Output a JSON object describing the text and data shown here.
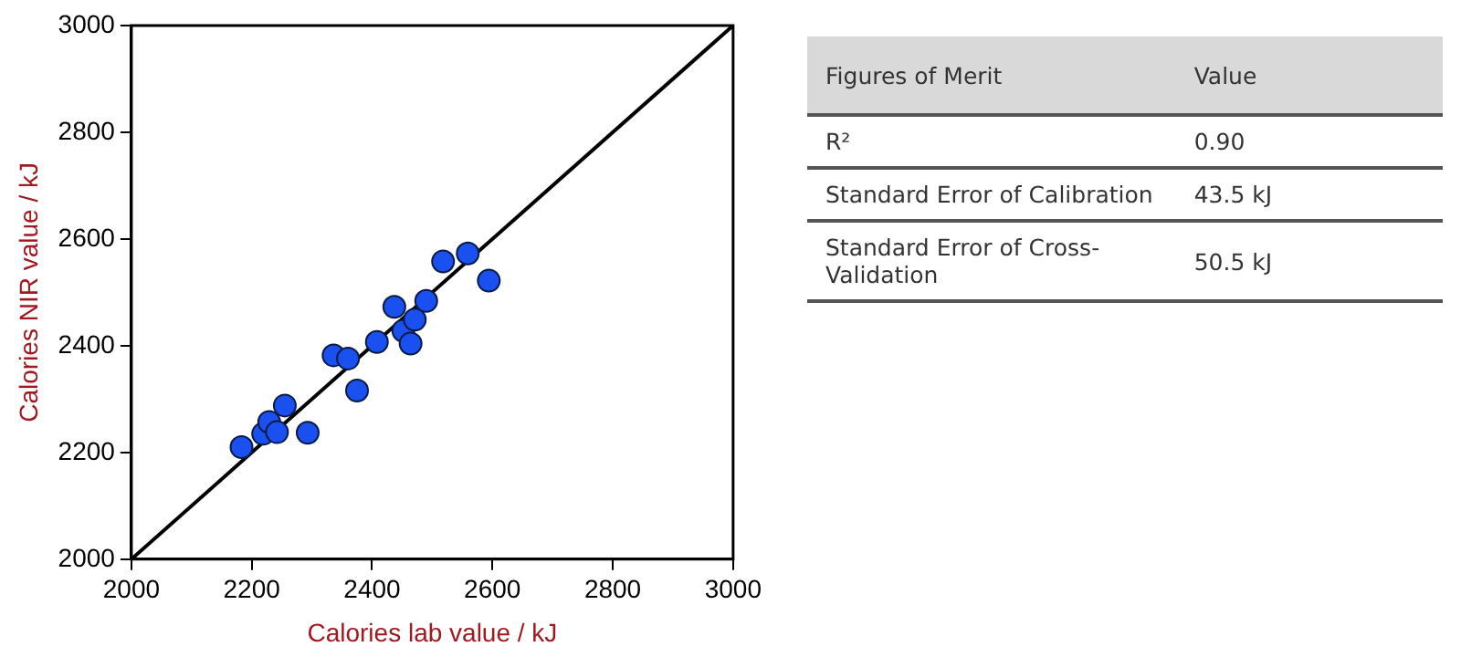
{
  "chart_data": [
    {
      "type": "scatter",
      "xlabel": "Calories lab value / kJ",
      "ylabel": "Calories NIR value / kJ",
      "xlim": [
        2000,
        3000
      ],
      "ylim": [
        2000,
        3000
      ],
      "xticks": [
        2000,
        2200,
        2400,
        2600,
        2800,
        3000
      ],
      "yticks": [
        2000,
        2200,
        2400,
        2600,
        2800,
        3000
      ],
      "grid": false,
      "legend": false,
      "series": [
        {
          "type": "scatter",
          "marker": "circle",
          "color": "#1a4ff0",
          "x": [
            2183,
            2219,
            2229,
            2242,
            2255,
            2293,
            2336,
            2360,
            2375,
            2408,
            2437,
            2452,
            2464,
            2471,
            2490,
            2518,
            2559,
            2594
          ],
          "values": [
            2210,
            2235,
            2257,
            2238,
            2288,
            2237,
            2382,
            2376,
            2316,
            2407,
            2473,
            2428,
            2404,
            2449,
            2484,
            2558,
            2573,
            2522
          ]
        },
        {
          "type": "line",
          "marker": "none",
          "color": "#000000",
          "x": [
            2000,
            3000
          ],
          "values": [
            2000,
            3000
          ]
        }
      ]
    },
    {
      "type": "other",
      "annotations": [
        "Figures of Merit",
        "Value",
        "R²",
        "0.90",
        "Standard Error of Calibration",
        "43.5 kJ",
        "Standard Error of Cross-Validation",
        "50.5 kJ"
      ]
    }
  ]
}
